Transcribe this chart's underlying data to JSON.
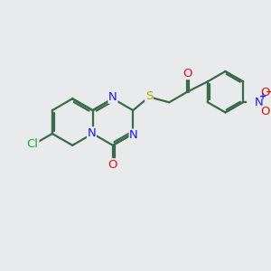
{
  "background_color": "#e8eaeb",
  "bond_color": "#3a6b4a",
  "bond_width": 1.6,
  "atom_colors": {
    "N": "#1a1aee",
    "O": "#dd1111",
    "S": "#aaaa00",
    "Cl": "#22aa22",
    "C": "#3a6b4a"
  },
  "font_size": 9.5,
  "figsize": [
    3.0,
    3.0
  ],
  "dpi": 100
}
